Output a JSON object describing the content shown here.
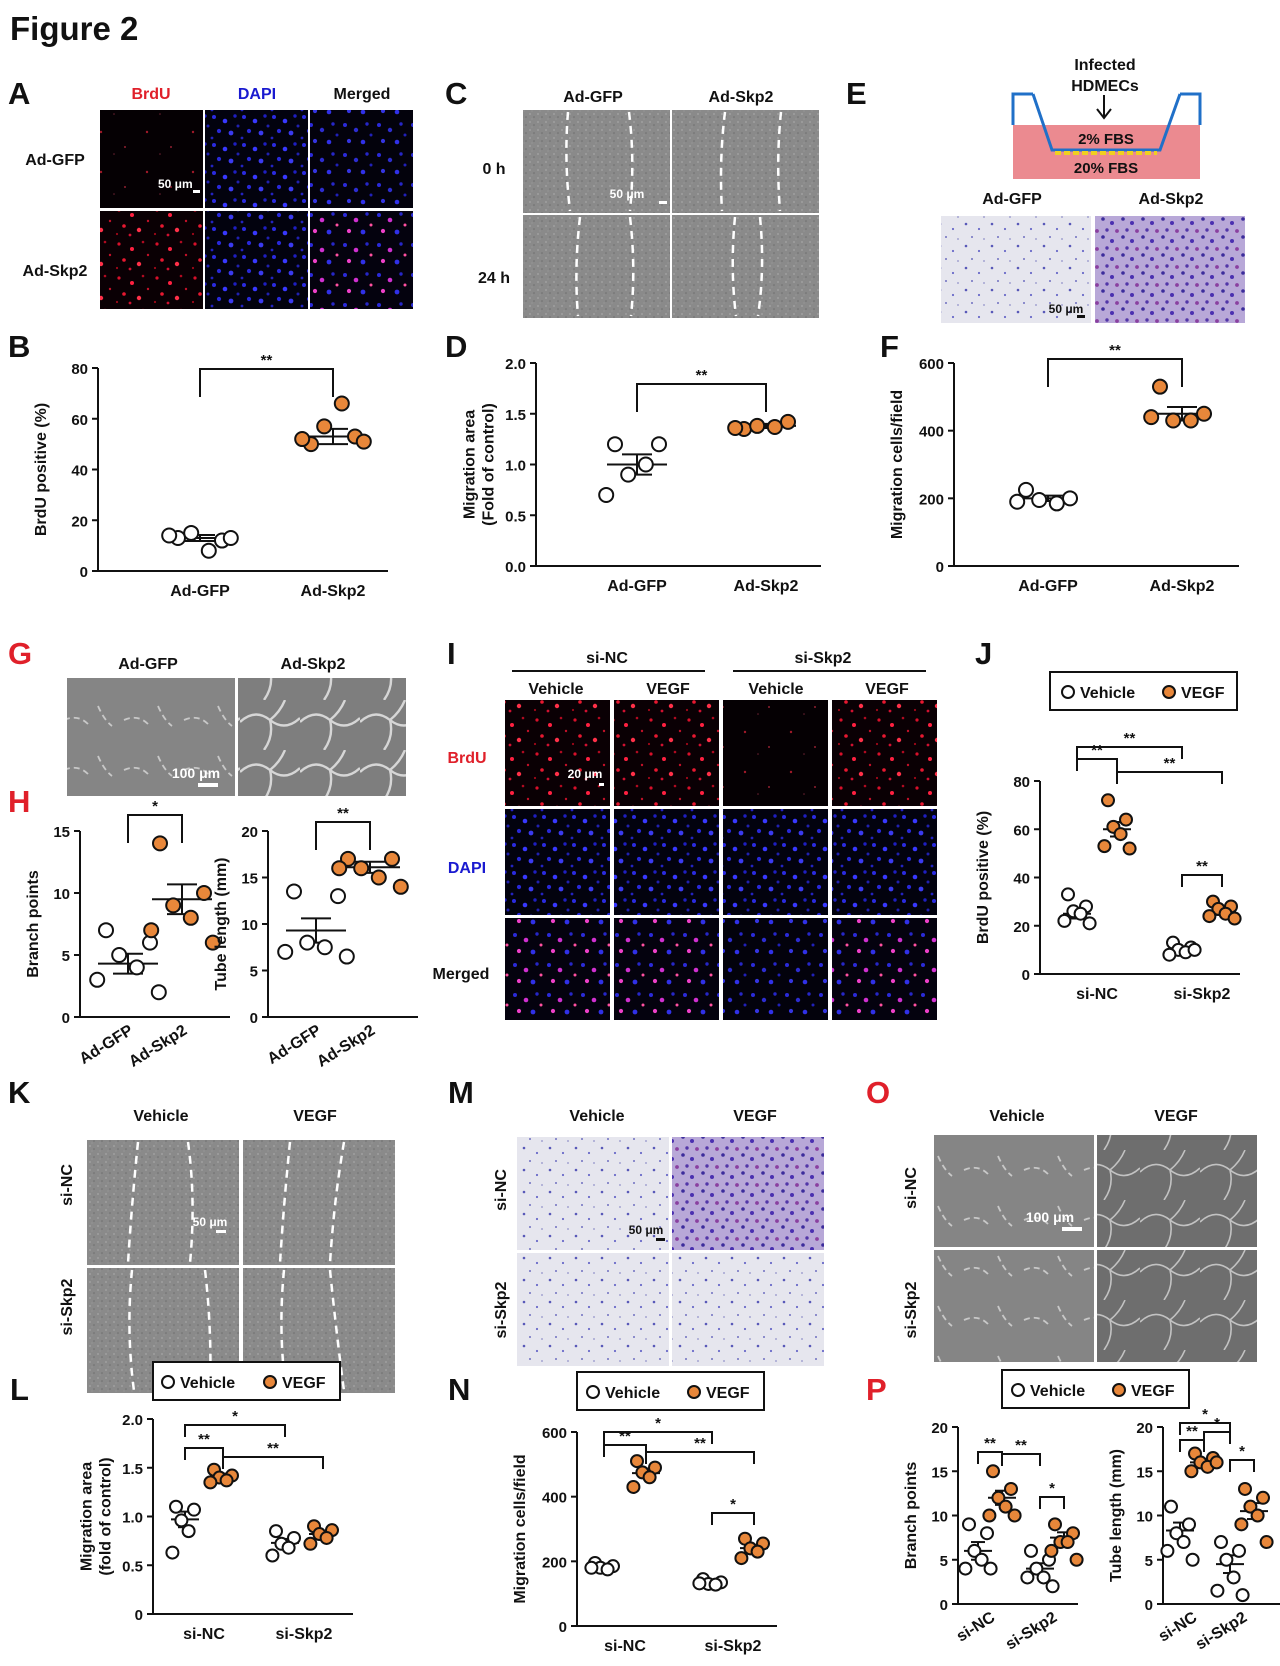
{
  "figure_title": "Figure 2",
  "panel_letters": {
    "A": "A",
    "B": "B",
    "C": "C",
    "D": "D",
    "E": "E",
    "F": "F",
    "G": "G",
    "H": "H",
    "I": "I",
    "J": "J",
    "K": "K",
    "L": "L",
    "M": "M",
    "N": "N",
    "O": "O",
    "P": "P"
  },
  "colors": {
    "vehicle_fill": "#ffffff",
    "vegf_fill": "#e8873a",
    "red_letter": "#e0202a",
    "brdu_label": "#e0202a",
    "dapi_label": "#1a1ad0"
  },
  "legend": {
    "vehicle": "Vehicle",
    "vegf": "VEGF"
  },
  "panel_A": {
    "col_labels": [
      "BrdU",
      "DAPI",
      "Merged"
    ],
    "row_labels": [
      "Ad-GFP",
      "Ad-Skp2"
    ],
    "scale_bar": "50 μm"
  },
  "panel_C": {
    "col_labels": [
      "Ad-GFP",
      "Ad-Skp2"
    ],
    "row_labels": [
      "0 h",
      "24 h"
    ],
    "scale_bar": "50 μm"
  },
  "panel_E": {
    "schematic_title": "Infected HDMECs",
    "title_lines": [
      "Infected",
      "HDMECs"
    ],
    "upper_label": "2% FBS",
    "lower_label": "20% FBS",
    "col_labels": [
      "Ad-GFP",
      "Ad-Skp2"
    ],
    "scale_bar": "50 μm"
  },
  "panel_G": {
    "col_labels": [
      "Ad-GFP",
      "Ad-Skp2"
    ],
    "scale_bar": "100 μm"
  },
  "panel_I": {
    "group_labels": [
      "si-NC",
      "si-Skp2"
    ],
    "col_labels": [
      "Vehicle",
      "VEGF",
      "Vehicle",
      "VEGF"
    ],
    "row_labels": [
      "BrdU",
      "DAPI",
      "Merged"
    ],
    "scale_bar": "20 μm"
  },
  "panel_K": {
    "col_labels": [
      "Vehicle",
      "VEGF"
    ],
    "row_labels": [
      "si-NC",
      "si-Skp2"
    ],
    "scale_bar": "50 μm"
  },
  "panel_M": {
    "col_labels": [
      "Vehicle",
      "VEGF"
    ],
    "row_labels": [
      "si-NC",
      "si-Skp2"
    ],
    "scale_bar": "50 μm"
  },
  "panel_O": {
    "col_labels": [
      "Vehicle",
      "VEGF"
    ],
    "row_labels": [
      "si-NC",
      "si-Skp2"
    ],
    "scale_bar": "100 μm"
  },
  "chart_data": [
    {
      "panel": "B",
      "type": "scatter",
      "ylabel": "BrdU positive (%)",
      "ylim": [
        0,
        80
      ],
      "yticks": [
        "0",
        "20",
        "40",
        "60",
        "80"
      ],
      "categories": [
        "Ad-GFP",
        "Ad-Skp2"
      ],
      "series": [
        {
          "values": [
            13,
            12,
            15,
            8,
            14,
            13
          ]
        },
        {
          "values": [
            50,
            53,
            57,
            66,
            52,
            51
          ]
        }
      ],
      "means": [
        13,
        53
      ],
      "sem": [
        1.2,
        3
      ],
      "annotations": [
        {
          "text": "**",
          "from": "Ad-GFP",
          "to": "Ad-Skp2"
        }
      ]
    },
    {
      "panel": "D",
      "type": "scatter",
      "ylabel": "Migration area (Fold of control)",
      "ylim": [
        0,
        2
      ],
      "yticks": [
        "0.0",
        "0.5",
        "1.0",
        "1.5",
        "2.0"
      ],
      "categories": [
        "Ad-GFP",
        "Ad-Skp2"
      ],
      "series": [
        {
          "values": [
            1.2,
            1.2,
            0.9,
            1.0,
            0.7
          ]
        },
        {
          "values": [
            1.35,
            1.42,
            1.38,
            1.37,
            1.36
          ]
        }
      ],
      "means": [
        1.0,
        1.38
      ],
      "sem": [
        0.1,
        0.02
      ],
      "annotations": [
        {
          "text": "**",
          "from": "Ad-GFP",
          "to": "Ad-Skp2"
        }
      ]
    },
    {
      "panel": "F",
      "type": "scatter",
      "ylabel": "Migration cells/field",
      "ylim": [
        0,
        600
      ],
      "yticks": [
        "0",
        "200",
        "400",
        "600"
      ],
      "categories": [
        "Ad-GFP",
        "Ad-Skp2"
      ],
      "series": [
        {
          "values": [
            225,
            200,
            195,
            185,
            190
          ]
        },
        {
          "values": [
            530,
            450,
            430,
            430,
            440
          ]
        }
      ],
      "means": [
        200,
        450
      ],
      "sem": [
        8,
        20
      ],
      "annotations": [
        {
          "text": "**",
          "from": "Ad-GFP",
          "to": "Ad-Skp2"
        }
      ]
    },
    {
      "panel": "H1",
      "type": "scatter",
      "ylabel": "Branch points",
      "ylim": [
        0,
        15
      ],
      "yticks": [
        "0",
        "5",
        "10",
        "15"
      ],
      "categories": [
        "Ad-GFP",
        "Ad-Skp2"
      ],
      "series": [
        {
          "values": [
            7,
            6,
            5,
            4,
            3,
            2
          ]
        },
        {
          "values": [
            14,
            10,
            9,
            8,
            7,
            6
          ]
        }
      ],
      "means": [
        4.3,
        9.5
      ],
      "sem": [
        0.8,
        1.2
      ],
      "annotations": [
        {
          "text": "*",
          "from": "Ad-GFP",
          "to": "Ad-Skp2"
        }
      ]
    },
    {
      "panel": "H2",
      "type": "scatter",
      "ylabel": "Tube length (mm)",
      "ylim": [
        0,
        20
      ],
      "yticks": [
        "0",
        "5",
        "10",
        "15",
        "20"
      ],
      "categories": [
        "Ad-GFP",
        "Ad-Skp2"
      ],
      "series": [
        {
          "values": [
            13.5,
            13,
            8,
            7.5,
            7,
            6.5
          ]
        },
        {
          "values": [
            17,
            17,
            16,
            15,
            16,
            14
          ]
        }
      ],
      "means": [
        9.3,
        16.1
      ],
      "sem": [
        1.3,
        0.6
      ],
      "annotations": [
        {
          "text": "**",
          "from": "Ad-GFP",
          "to": "Ad-Skp2"
        }
      ]
    },
    {
      "panel": "J",
      "type": "scatter",
      "ylabel": "BrdU positive (%)",
      "ylim": [
        0,
        80
      ],
      "yticks": [
        "0",
        "20",
        "40",
        "60",
        "80"
      ],
      "categories": [
        "si-NC",
        "si-Skp2"
      ],
      "series": [
        {
          "name": "Vehicle",
          "values": [
            33,
            28,
            26,
            25,
            22,
            21
          ]
        },
        {
          "name": "VEGF",
          "values": [
            72,
            64,
            61,
            58,
            53,
            52
          ]
        },
        {
          "name": "Vehicle",
          "values": [
            13,
            11,
            10,
            9,
            8,
            10
          ]
        },
        {
          "name": "VEGF",
          "values": [
            30,
            28,
            27,
            25,
            24,
            23
          ]
        }
      ],
      "means": [
        25,
        60,
        10,
        26
      ],
      "sem": [
        2,
        3,
        1,
        1.5
      ],
      "annotations": [
        {
          "text": "**",
          "from": "si-NC Vehicle",
          "to": "si-NC VEGF"
        },
        {
          "text": "**",
          "from": "si-NC Vehicle",
          "to": "si-Skp2 Vehicle"
        },
        {
          "text": "**",
          "from": "si-NC VEGF",
          "to": "si-Skp2 VEGF"
        },
        {
          "text": "**",
          "from": "si-Skp2 Vehicle",
          "to": "si-Skp2 VEGF"
        }
      ]
    },
    {
      "panel": "L",
      "type": "scatter",
      "ylabel": "Migration area (fold of control)",
      "ylim": [
        0,
        2
      ],
      "yticks": [
        "0",
        "0.5",
        "1.0",
        "1.5",
        "2.0"
      ],
      "categories": [
        "si-NC",
        "si-Skp2"
      ],
      "series": [
        {
          "name": "Vehicle",
          "values": [
            1.1,
            1.07,
            0.96,
            0.85,
            0.63
          ]
        },
        {
          "name": "VEGF",
          "values": [
            1.48,
            1.42,
            1.4,
            1.37,
            1.35
          ]
        },
        {
          "name": "Vehicle",
          "values": [
            0.85,
            0.78,
            0.72,
            0.68,
            0.6
          ]
        },
        {
          "name": "VEGF",
          "values": [
            0.9,
            0.86,
            0.82,
            0.78,
            0.72
          ]
        }
      ],
      "means": [
        0.97,
        1.41,
        0.73,
        0.82
      ],
      "sem": [
        0.08,
        0.03,
        0.04,
        0.03
      ],
      "annotations": [
        {
          "text": "**",
          "from": "si-NC Vehicle",
          "to": "si-NC VEGF"
        },
        {
          "text": "*",
          "from": "si-NC Vehicle",
          "to": "si-Skp2 Vehicle"
        },
        {
          "text": "**",
          "from": "si-NC VEGF",
          "to": "si-Skp2 VEGF"
        }
      ]
    },
    {
      "panel": "N",
      "type": "scatter",
      "ylabel": "Migration cells/field",
      "ylim": [
        0,
        600
      ],
      "yticks": [
        "0",
        "200",
        "400",
        "600"
      ],
      "categories": [
        "si-NC",
        "si-Skp2"
      ],
      "series": [
        {
          "name": "Vehicle",
          "values": [
            195,
            185,
            180,
            175,
            180
          ]
        },
        {
          "name": "VEGF",
          "values": [
            510,
            490,
            475,
            460,
            430
          ]
        },
        {
          "name": "Vehicle",
          "values": [
            145,
            135,
            130,
            128,
            132
          ]
        },
        {
          "name": "VEGF",
          "values": [
            270,
            255,
            240,
            230,
            210
          ]
        }
      ],
      "means": [
        183,
        473,
        134,
        241
      ],
      "sem": [
        5,
        14,
        3,
        10
      ],
      "annotations": [
        {
          "text": "**",
          "from": "si-NC Vehicle",
          "to": "si-NC VEGF"
        },
        {
          "text": "*",
          "from": "si-NC Vehicle",
          "to": "si-Skp2 Vehicle"
        },
        {
          "text": "**",
          "from": "si-NC VEGF",
          "to": "si-Skp2 VEGF"
        },
        {
          "text": "*",
          "from": "si-Skp2 Vehicle",
          "to": "si-Skp2 VEGF"
        }
      ]
    },
    {
      "panel": "P1",
      "type": "scatter",
      "ylabel": "Branch points",
      "ylim": [
        0,
        20
      ],
      "yticks": [
        "0",
        "5",
        "10",
        "15",
        "20"
      ],
      "categories": [
        "si-NC",
        "si-Skp2"
      ],
      "series": [
        {
          "name": "Vehicle",
          "values": [
            9,
            8,
            6,
            5,
            4,
            4
          ]
        },
        {
          "name": "VEGF",
          "values": [
            15,
            13,
            12,
            11,
            10,
            10
          ]
        },
        {
          "name": "Vehicle",
          "values": [
            6,
            5,
            4,
            3,
            3,
            2
          ]
        },
        {
          "name": "VEGF",
          "values": [
            9,
            8,
            7,
            7,
            6,
            5
          ]
        }
      ],
      "means": [
        6,
        12,
        4,
        7.5
      ],
      "sem": [
        1,
        0.8,
        0.6,
        0.6
      ],
      "annotations": [
        {
          "text": "**",
          "from": "si-NC Vehicle",
          "to": "si-NC VEGF"
        },
        {
          "text": "**",
          "from": "si-NC VEGF",
          "to": "si-Skp2 Vehicle"
        },
        {
          "text": "*",
          "from": "si-Skp2 Vehicle",
          "to": "si-Skp2 VEGF"
        }
      ]
    },
    {
      "panel": "P2",
      "type": "scatter",
      "ylabel": "Tube length (mm)",
      "ylim": [
        0,
        20
      ],
      "yticks": [
        "0",
        "5",
        "10",
        "15",
        "20"
      ],
      "categories": [
        "si-NC",
        "si-Skp2"
      ],
      "series": [
        {
          "name": "Vehicle",
          "values": [
            11,
            9,
            8,
            7,
            6,
            5
          ]
        },
        {
          "name": "VEGF",
          "values": [
            17,
            16.5,
            16,
            15.5,
            15,
            16
          ]
        },
        {
          "name": "Vehicle",
          "values": [
            7,
            6,
            5,
            3,
            1.5,
            1
          ]
        },
        {
          "name": "VEGF",
          "values": [
            13,
            12,
            11,
            10,
            9,
            7
          ]
        }
      ],
      "means": [
        8.3,
        16,
        4.5,
        10.5
      ],
      "sem": [
        0.9,
        0.4,
        1,
        0.9
      ],
      "annotations": [
        {
          "text": "**",
          "from": "si-NC Vehicle",
          "to": "si-NC VEGF"
        },
        {
          "text": "*",
          "from": "si-NC Vehicle",
          "to": "si-Skp2 Vehicle"
        },
        {
          "text": "*",
          "from": "si-NC VEGF",
          "to": "si-Skp2 Vehicle"
        },
        {
          "text": "*",
          "from": "si-Skp2 Vehicle",
          "to": "si-Skp2 VEGF"
        }
      ]
    }
  ]
}
